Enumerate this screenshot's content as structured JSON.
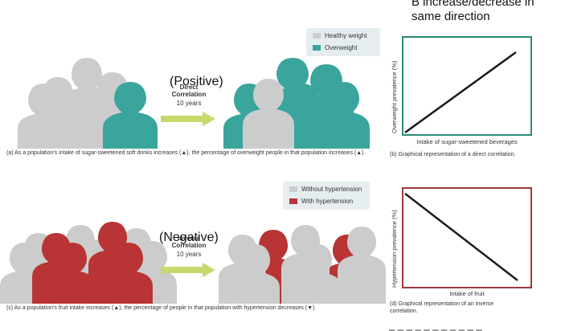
{
  "header_note": {
    "line1": "B increase/decrease in",
    "line2": "same direction"
  },
  "colors": {
    "healthy": "#cccccc",
    "overweight": "#3aa59c",
    "hypertension": "#b93434",
    "arrow": "#c6d96b",
    "graph_top": "#2c8a78",
    "graph_bottom": "#a33a3a"
  },
  "panel_a": {
    "legend": [
      "Healthy weight",
      "Overweight"
    ],
    "arrow_title_line1": "Direct",
    "arrow_title_line2": "Correlation",
    "arrow_time": "10 years",
    "overlay_label": "(Positive)",
    "caption": "(a) As a population’s intake of sugar-sweetened soft drinks increases (▲), the percentage of overweight people in that population increases (▲)."
  },
  "panel_b": {
    "ylabel": "Overweight prevalence (%)",
    "xlabel": "Intake of sugar-sweetened beverages",
    "caption": "(b) Graphical representation of a direct correlation."
  },
  "panel_c": {
    "legend": [
      "Without hypertension",
      "With hypertension"
    ],
    "arrow_title_line1": "Inverse",
    "arrow_title_line2": "Correlation",
    "arrow_time": "10 years",
    "overlay_label": "(Negative)",
    "caption": "(c) As a population’s fruit intake increases (▲), the percentage of people in that population with hypertension decreases (▼)."
  },
  "panel_d": {
    "ylabel": "Hypertension prevalence (%)",
    "xlabel": "Intake of fruit",
    "caption": "(d) Graphical representation of an inverse correlation."
  },
  "bottom_cut_text": "_ _ _ _ _ _ _ _ _ _ _"
}
